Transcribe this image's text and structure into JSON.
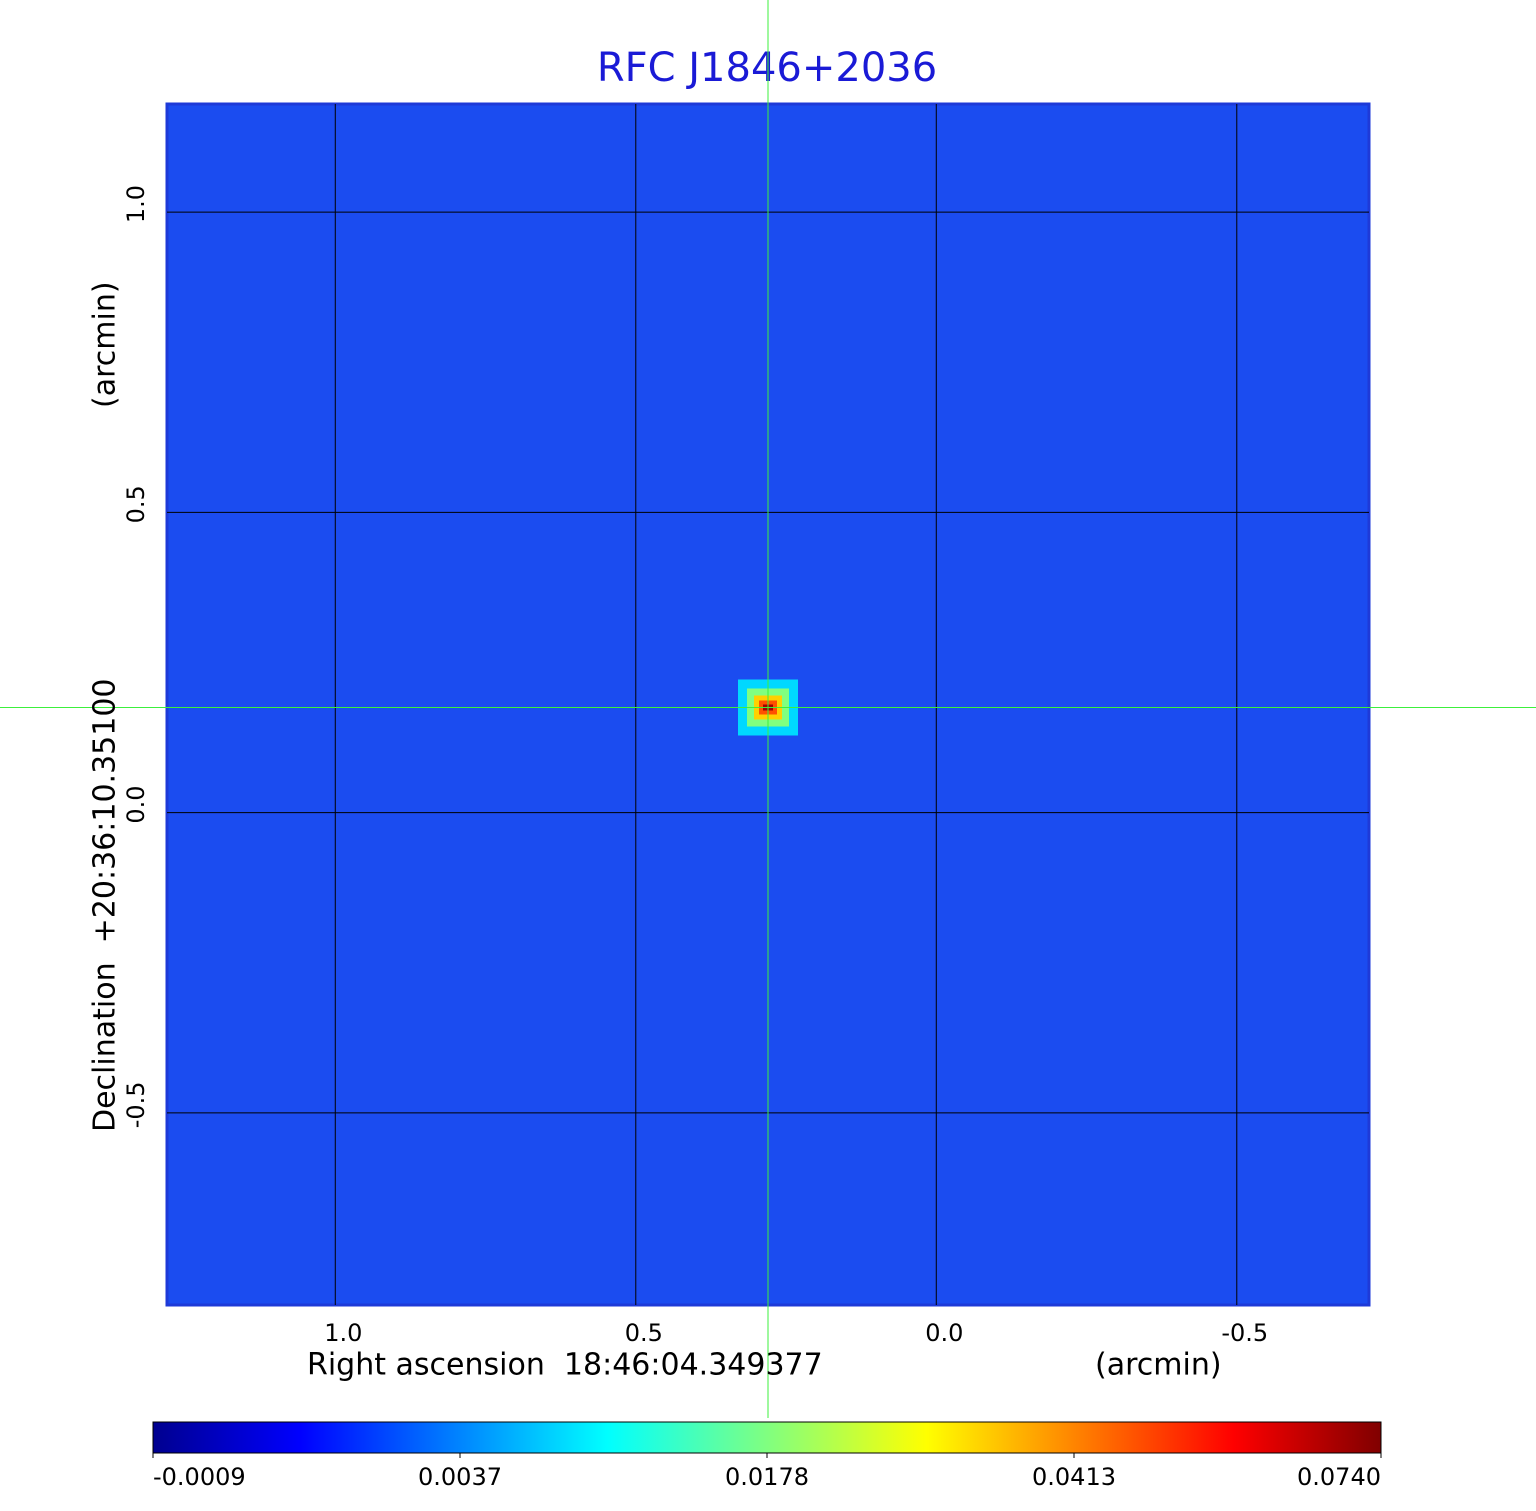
{
  "chart_data": {
    "type": "image",
    "title": "RFC J1846+2036",
    "x_label": "Right ascension  18:46:04.349377",
    "x_unit": "(arcmin)",
    "y_label": "Declination  +20:36:10.35100",
    "y_unit": "(arcmin)",
    "xlim": [
      1.28,
      -0.72
    ],
    "ylim": [
      -0.82,
      1.18
    ],
    "xticks": [
      {
        "value": 1,
        "label": "1.0"
      },
      0.5,
      {
        "value": 0,
        "label": "0.0"
      },
      -0.5
    ],
    "yticks": [
      -0.5,
      {
        "value": 0,
        "label": "0.0"
      },
      0.5,
      {
        "value": 1,
        "label": "1.0"
      }
    ],
    "grid": true,
    "source": {
      "x": 0.28,
      "y": 0.175
    },
    "colorbar_ticks": [
      -0.0009,
      0.0037,
      0.0178,
      0.0413,
      {
        "value": 0.074,
        "label": "0.0740"
      }
    ]
  }
}
